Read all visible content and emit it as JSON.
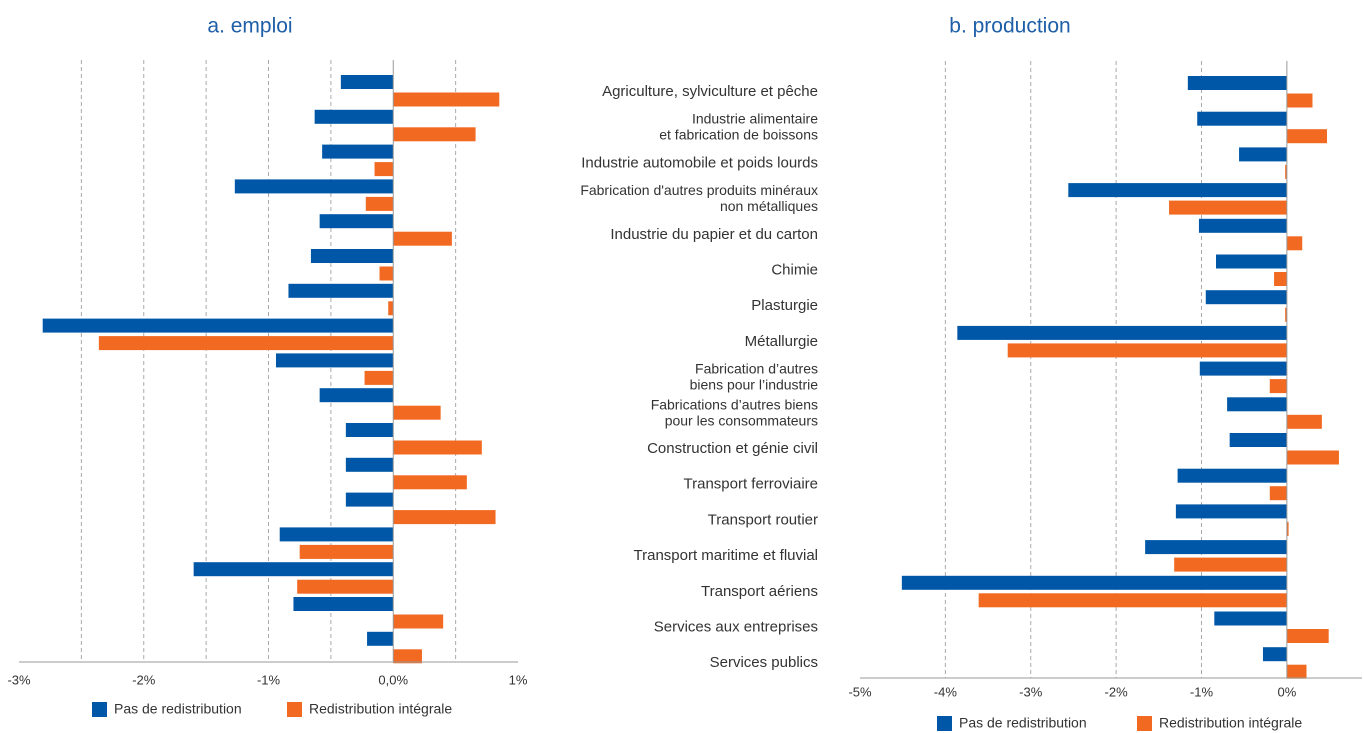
{
  "chart_data": [
    {
      "type": "bar",
      "orientation": "horizontal",
      "title": "a. emploi",
      "series": [
        {
          "name": "Pas de redistribution",
          "color": "#0057a8",
          "values": [
            -0.42,
            -0.63,
            -0.57,
            -1.27,
            -0.59,
            -0.66,
            -0.84,
            -2.81,
            -0.94,
            -0.59,
            -0.38,
            -0.38,
            -0.38,
            -0.91,
            -1.6,
            -0.8,
            -0.21
          ]
        },
        {
          "name": "Redistribution intégrale",
          "color": "#f26a21",
          "values": [
            0.85,
            0.66,
            -0.15,
            -0.22,
            0.47,
            -0.11,
            -0.04,
            -2.36,
            -0.23,
            0.38,
            0.71,
            0.59,
            0.82,
            -0.75,
            -0.77,
            0.4,
            0.23
          ]
        }
      ],
      "xlim": [
        -3,
        1
      ],
      "xticks": [
        {
          "value": -3,
          "label": "-3%"
        },
        {
          "value": -2,
          "label": "-2%"
        },
        {
          "value": -1,
          "label": "-1%"
        },
        {
          "value": 0,
          "label": "0,0%"
        },
        {
          "value": 1,
          "label": "1%"
        }
      ],
      "grid_lines": [
        -2.5,
        -2,
        -1.5,
        -1,
        -0.5,
        0.5
      ],
      "legend": "bottom"
    },
    {
      "type": "bar",
      "orientation": "horizontal",
      "title": "b. production",
      "categories": [
        "Agriculture, sylviculture et pêche",
        "Industrie alimentaire\net fabrication de boissons",
        "Industrie automobile et poids lourds",
        "Fabrication d'autres produits minéraux\nnon métalliques",
        "Industrie du papier et du carton",
        "Chimie",
        "Plasturgie",
        "Métallurgie",
        "Fabrication d’autres\nbiens pour l’industrie",
        "Fabrications d’autres biens\npour les consommateurs",
        "Construction et génie civil",
        "Transport ferroviaire",
        "Transport routier",
        "Transport maritime et fluvial",
        "Transport aériens",
        "Services aux entreprises",
        "Services publics"
      ],
      "series": [
        {
          "name": "Pas de redistribution",
          "color": "#0057a8",
          "values": [
            -1.16,
            -1.05,
            -0.56,
            -2.56,
            -1.03,
            -0.83,
            -0.95,
            -3.86,
            -1.02,
            -0.7,
            -0.67,
            -1.28,
            -1.3,
            -1.66,
            -4.51,
            -0.85,
            -0.28
          ]
        },
        {
          "name": "Redistribution intégrale",
          "color": "#f26a21",
          "values": [
            0.3,
            0.47,
            -0.02,
            -1.38,
            0.18,
            -0.15,
            -0.02,
            -3.27,
            -0.2,
            0.41,
            0.61,
            -0.2,
            0.02,
            -1.32,
            -3.61,
            0.49,
            0.23
          ]
        }
      ],
      "xlim": [
        -5,
        0.88
      ],
      "xticks": [
        {
          "value": -5,
          "label": "-5%"
        },
        {
          "value": -4,
          "label": "-4%"
        },
        {
          "value": -3,
          "label": "-3%"
        },
        {
          "value": -2,
          "label": "-2%"
        },
        {
          "value": -1,
          "label": "-1%"
        },
        {
          "value": 0,
          "label": "0%"
        }
      ],
      "grid_lines": [
        -4,
        -3,
        -2,
        -1
      ],
      "legend": "bottom"
    }
  ]
}
